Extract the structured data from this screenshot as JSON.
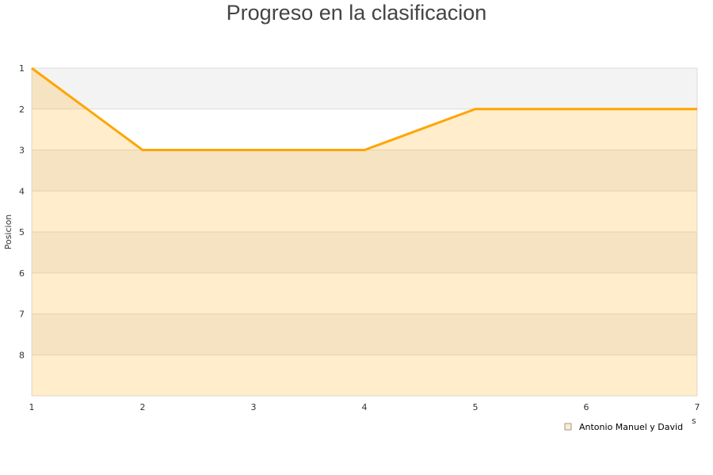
{
  "chart_data": {
    "type": "area",
    "title": "Progreso en la clasificacion",
    "ylabel": "Posicion",
    "xlabel_fragment": "s",
    "x": [
      1,
      2,
      3,
      4,
      5,
      6,
      7
    ],
    "xlim": [
      1,
      7
    ],
    "ylim": [
      1,
      9
    ],
    "y_inverted": true,
    "y_ticks": [
      1,
      2,
      3,
      4,
      5,
      6,
      7,
      8
    ],
    "grid": "horizontal banded",
    "legend_position": "bottom-right",
    "series": [
      {
        "name": "Antonio Manuel y David",
        "values": [
          1,
          3,
          3,
          3,
          2,
          2,
          2
        ],
        "color": "#ffa500",
        "fill": "#ffedcc"
      }
    ]
  }
}
